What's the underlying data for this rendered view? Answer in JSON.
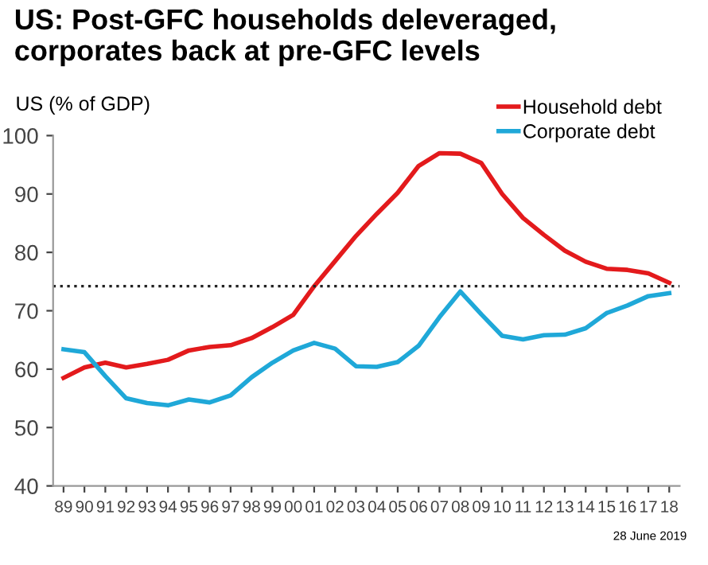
{
  "chart_data": {
    "type": "line",
    "title": "US: Post-GFC households deleveraged,\ncorporates back at pre-GFC levels",
    "ylabel": "US (% of GDP)",
    "categories": [
      "89",
      "90",
      "91",
      "92",
      "93",
      "94",
      "95",
      "96",
      "97",
      "98",
      "99",
      "00",
      "01",
      "02",
      "03",
      "04",
      "05",
      "06",
      "07",
      "08",
      "09",
      "10",
      "11",
      "12",
      "13",
      "14",
      "15",
      "16",
      "17",
      "18"
    ],
    "series": [
      {
        "name": "Household debt",
        "color": "#e31a1c",
        "values": [
          58.5,
          60.3,
          61.1,
          60.3,
          60.9,
          61.6,
          63.2,
          63.8,
          64.1,
          65.3,
          67.2,
          69.3,
          74.2,
          78.5,
          82.8,
          86.6,
          90.2,
          94.8,
          97.0,
          96.9,
          95.3,
          90.0,
          85.9,
          83.0,
          80.3,
          78.4,
          77.2,
          77.0,
          76.4,
          74.8
        ]
      },
      {
        "name": "Corporate debt",
        "color": "#1fa8d8",
        "values": [
          63.4,
          62.9,
          58.8,
          55.0,
          54.2,
          53.8,
          54.8,
          54.3,
          55.5,
          58.6,
          61.1,
          63.2,
          64.5,
          63.5,
          60.5,
          60.4,
          61.2,
          64.0,
          68.9,
          73.3,
          69.4,
          65.7,
          65.1,
          65.8,
          65.9,
          67.0,
          69.6,
          70.9,
          72.5,
          73.0
        ]
      }
    ],
    "ylim": [
      40,
      100
    ],
    "yticks": [
      40,
      50,
      60,
      70,
      80,
      90,
      100
    ],
    "ref_lines": [
      {
        "axis": "y",
        "value": 74.2,
        "color": "#222222",
        "line_style": "dotted"
      }
    ],
    "annotations": [
      "28 June 2019"
    ],
    "grid": false,
    "legend": "top right",
    "marker": "none",
    "line_style": "solid"
  }
}
